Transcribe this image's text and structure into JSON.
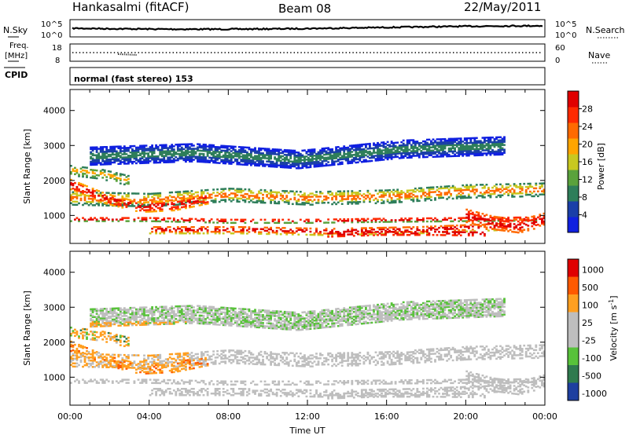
{
  "header": {
    "station": "Hankasalmi (fitACF)",
    "beam": "Beam 08",
    "date": "22/May/2011"
  },
  "noise_panel": {
    "left_label": "N.Sky",
    "left_ticks": [
      "10^5",
      "10^0"
    ],
    "right_label": "N.Search",
    "right_ticks": [
      "10^5",
      "10^0"
    ]
  },
  "freq_panel": {
    "left_label_1": "Freq.",
    "left_label_2": "[MHz]",
    "left_ticks": [
      "18",
      "8"
    ],
    "right_label": "Nave",
    "right_ticks": [
      "60",
      "0"
    ]
  },
  "cpid": {
    "label": "CPID",
    "text": "normal (fast stereo) 153"
  },
  "colors": {
    "power": [
      "#1020e0",
      "#1a3fa8",
      "#2e7e5a",
      "#5aa23c",
      "#c8c820",
      "#ffa500",
      "#ff6a00",
      "#ff2a00",
      "#e00000"
    ],
    "velocity": [
      "#e00000",
      "#ff5a00",
      "#ff9f20",
      "#bebebe",
      "#bebebe",
      "#58c23a",
      "#2f7a4e",
      "#1e3fa0"
    ]
  },
  "chart_data": [
    {
      "type": "heatmap",
      "name": "power",
      "ylabel": "Slant Range [km]",
      "xlabel": "",
      "x_ticks": [
        "00:00",
        "04:00",
        "08:00",
        "12:00",
        "16:00",
        "20:00",
        "00:00"
      ],
      "y_ticks": [
        1000,
        2000,
        3000,
        4000
      ],
      "ylim": [
        200,
        4600
      ],
      "xlim_hours": [
        0,
        24
      ],
      "colorbar_label": "Power [dB]",
      "colorbar_ticks": [
        "4",
        "8",
        "12",
        "16",
        "20",
        "24",
        "28"
      ]
    },
    {
      "type": "heatmap",
      "name": "velocity",
      "ylabel": "Slant Range [km]",
      "xlabel": "Time UT",
      "x_ticks": [
        "00:00",
        "04:00",
        "08:00",
        "12:00",
        "16:00",
        "20:00",
        "00:00"
      ],
      "y_ticks": [
        1000,
        2000,
        3000,
        4000
      ],
      "ylim": [
        200,
        4600
      ],
      "xlim_hours": [
        0,
        24
      ],
      "colorbar_label": "Velocity [m s-1]",
      "colorbar_ticks": [
        "1000",
        "500",
        "100",
        "25",
        "-25",
        "-100",
        "-500",
        "-1000"
      ]
    }
  ]
}
